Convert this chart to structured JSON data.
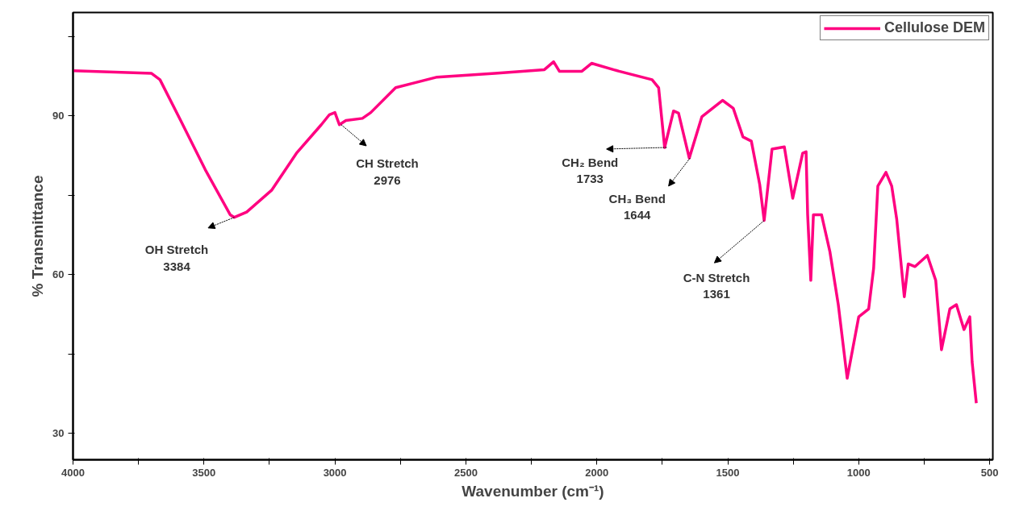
{
  "chart_data": {
    "type": "line",
    "xlabel": "Wavenumber (cm⁻¹)",
    "ylabel": "% Transmittance",
    "xlim": [
      4000,
      488
    ],
    "ylim": [
      25,
      109.5
    ],
    "xticks": [
      4000,
      {
        "value": 3750,
        "label": null
      },
      3500,
      {
        "value": 3250,
        "label": null
      },
      3000,
      {
        "value": 2750,
        "label": null
      },
      2500,
      {
        "value": 2250,
        "label": null
      },
      2000,
      {
        "value": 1750,
        "label": null
      },
      1500,
      {
        "value": 1250,
        "label": null
      },
      1000,
      {
        "value": 750,
        "label": null
      },
      500
    ],
    "yticks": [
      30,
      {
        "value": 45,
        "label": null
      },
      60,
      {
        "value": 75,
        "label": null
      },
      90,
      {
        "value": 105,
        "label": null
      }
    ],
    "grid": false,
    "legend": "top right",
    "line_style": "solid",
    "marker": "none",
    "series": [
      {
        "name": "Cellulose DEM",
        "color": "#ff0080",
        "x": [
          4000,
          3700,
          3668,
          3589,
          3495,
          3400,
          3384,
          3337,
          3242,
          3147,
          3052,
          3021,
          3000,
          2983,
          2958,
          2895,
          2863,
          2768,
          2610,
          2389,
          2200,
          2165,
          2143,
          2057,
          2020,
          1915,
          1789,
          1764,
          1741,
          1707,
          1688,
          1647,
          1599,
          1520,
          1479,
          1442,
          1410,
          1378,
          1361,
          1331,
          1284,
          1252,
          1214,
          1201,
          1195,
          1183,
          1173,
          1142,
          1110,
          1078,
          1044,
          1000,
          962,
          943,
          927,
          896,
          874,
          855,
          826,
          811,
          785,
          738,
          706,
          684,
          652,
          627,
          598,
          576,
          567,
          551
        ],
        "values": [
          98.5,
          98.0,
          96.8,
          89.1,
          79.8,
          71.3,
          70.8,
          71.8,
          75.9,
          82.9,
          88.3,
          90.2,
          90.6,
          88.3,
          89.1,
          89.5,
          90.6,
          95.3,
          97.3,
          98.0,
          98.7,
          100.2,
          98.4,
          98.4,
          99.9,
          98.4,
          96.8,
          95.3,
          84.0,
          90.9,
          90.5,
          82.0,
          89.8,
          92.9,
          91.4,
          86.0,
          85.2,
          77.0,
          70.2,
          83.7,
          84.1,
          74.4,
          82.9,
          83.2,
          71.3,
          58.9,
          71.3,
          71.3,
          64.3,
          54.3,
          40.4,
          52.0,
          53.5,
          61.2,
          76.7,
          79.3,
          76.7,
          70.5,
          55.8,
          62.0,
          61.5,
          63.6,
          58.9,
          45.8,
          53.5,
          54.3,
          49.6,
          52.0,
          43.5,
          35.7
        ]
      }
    ],
    "annotations": [
      {
        "text": "OH Stretch\n3384",
        "x": 3384,
        "y": 70.8
      },
      {
        "text": "CH Stretch\n2976",
        "x": 2976,
        "y": 88.3
      },
      {
        "text": "CH₂ Bend\n1733",
        "x": 1733,
        "y": 84.0
      },
      {
        "text": "CH₃ Bend\n1644",
        "x": 1644,
        "y": 82.0
      },
      {
        "text": "C-N Stretch\n1361",
        "x": 1361,
        "y": 70.2
      }
    ]
  }
}
